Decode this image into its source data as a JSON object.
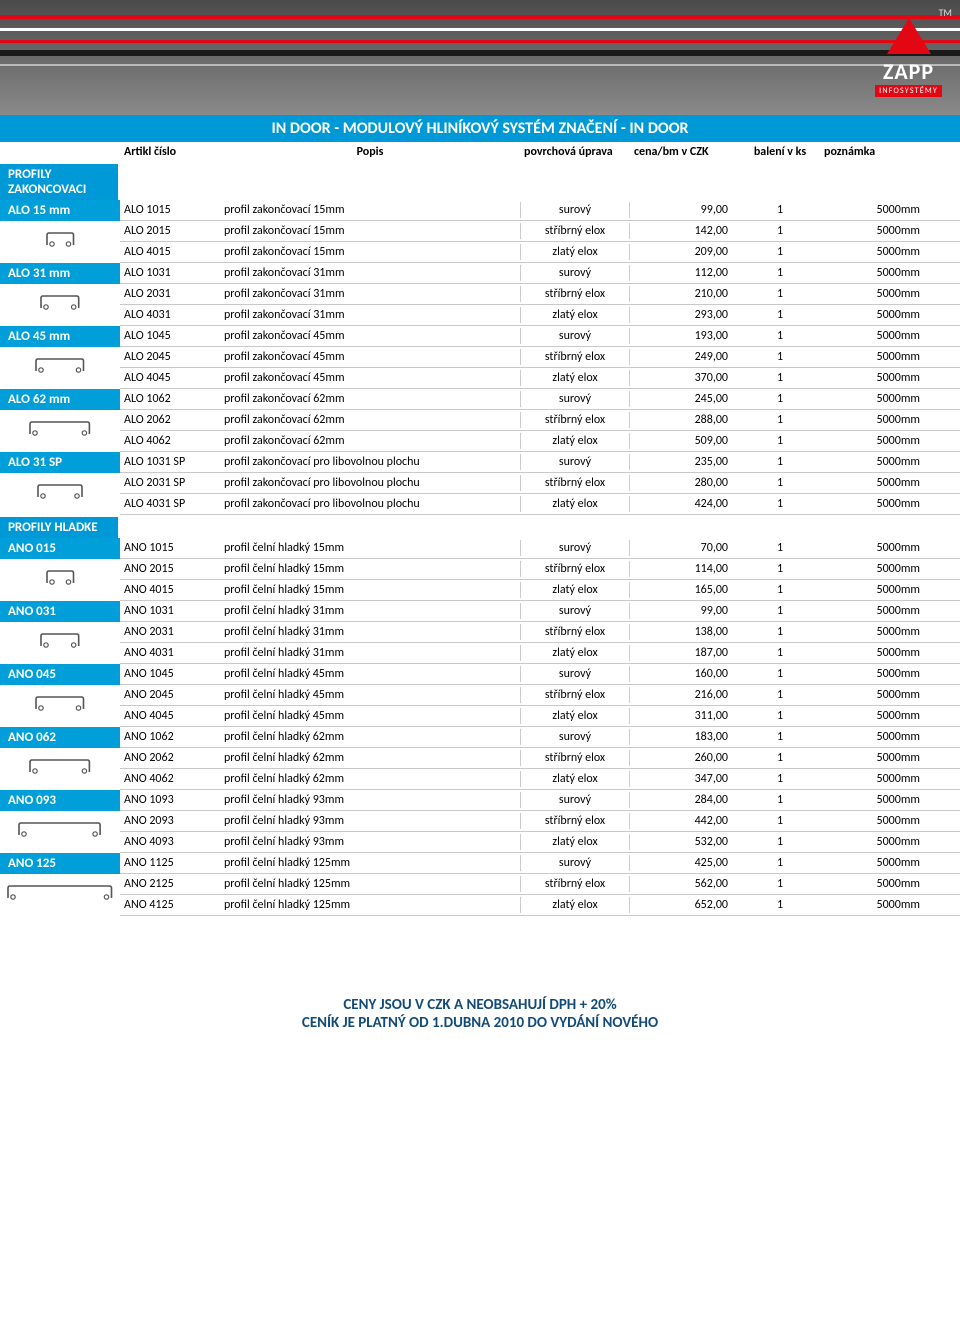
{
  "banner": {
    "brand": "ZAPP",
    "sub": "INFOSYSTÉMY",
    "tm": "TM"
  },
  "main_title": "IN DOOR - MODULOVÝ HLINÍKOVÝ SYSTÉM ZNAČENÍ - IN DOOR",
  "columns": {
    "article": "Artikl číslo",
    "popis": "Popis",
    "uprava": "povrchová úprava",
    "cena": "cena/bm v CZK",
    "baleni": "balení v ks",
    "pozn": "poznámka"
  },
  "sections": [
    {
      "title": "PROFILY ZAKONCOVACI"
    },
    {
      "title": "PROFILY HLADKE"
    }
  ],
  "groups": [
    {
      "section": 0,
      "badge": "ALO 15 mm",
      "icon": "p15",
      "rows": [
        {
          "article": "ALO 1015",
          "popis": "profil zakončovací 15mm",
          "uprava": "surový",
          "cena": "99,00",
          "baleni": "1",
          "pozn": "5000mm"
        },
        {
          "article": "ALO 2015",
          "popis": "profil zakončovací 15mm",
          "uprava": "stříbrný elox",
          "cena": "142,00",
          "baleni": "1",
          "pozn": "5000mm"
        },
        {
          "article": "ALO 4015",
          "popis": "profil zakončovací 15mm",
          "uprava": "zlatý elox",
          "cena": "209,00",
          "baleni": "1",
          "pozn": "5000mm"
        }
      ]
    },
    {
      "section": 0,
      "badge": "ALO 31 mm",
      "icon": "p31",
      "rows": [
        {
          "article": "ALO 1031",
          "popis": "profil zakončovací 31mm",
          "uprava": "surový",
          "cena": "112,00",
          "baleni": "1",
          "pozn": "5000mm"
        },
        {
          "article": "ALO 2031",
          "popis": "profil zakončovací 31mm",
          "uprava": "stříbrný elox",
          "cena": "210,00",
          "baleni": "1",
          "pozn": "5000mm"
        },
        {
          "article": "ALO 4031",
          "popis": "profil zakončovací 31mm",
          "uprava": "zlatý elox",
          "cena": "293,00",
          "baleni": "1",
          "pozn": "5000mm"
        }
      ]
    },
    {
      "section": 0,
      "badge": "ALO 45 mm",
      "icon": "p45",
      "rows": [
        {
          "article": "ALO 1045",
          "popis": "profil zakončovací 45mm",
          "uprava": "surový",
          "cena": "193,00",
          "baleni": "1",
          "pozn": "5000mm"
        },
        {
          "article": "ALO 2045",
          "popis": "profil zakončovací 45mm",
          "uprava": "stříbrný elox",
          "cena": "249,00",
          "baleni": "1",
          "pozn": "5000mm"
        },
        {
          "article": "ALO 4045",
          "popis": "profil zakončovací 45mm",
          "uprava": "zlatý elox",
          "cena": "370,00",
          "baleni": "1",
          "pozn": "5000mm"
        }
      ]
    },
    {
      "section": 0,
      "badge": "ALO 62 mm",
      "icon": "p62",
      "rows": [
        {
          "article": "ALO 1062",
          "popis": "profil zakončovací 62mm",
          "uprava": "surový",
          "cena": "245,00",
          "baleni": "1",
          "pozn": "5000mm"
        },
        {
          "article": "ALO 2062",
          "popis": "profil zakončovací 62mm",
          "uprava": "stříbrný elox",
          "cena": "288,00",
          "baleni": "1",
          "pozn": "5000mm"
        },
        {
          "article": "ALO 4062",
          "popis": "profil zakončovací 62mm",
          "uprava": "zlatý elox",
          "cena": "509,00",
          "baleni": "1",
          "pozn": "5000mm"
        }
      ]
    },
    {
      "section": 0,
      "badge": "ALO 31 SP",
      "icon": "psp",
      "rows": [
        {
          "article": "ALO 1031 SP",
          "popis": "profil zakončovací pro libovolnou plochu",
          "uprava": "surový",
          "cena": "235,00",
          "baleni": "1",
          "pozn": "5000mm"
        },
        {
          "article": "ALO 2031 SP",
          "popis": "profil zakončovací pro libovolnou plochu",
          "uprava": "stříbrný elox",
          "cena": "280,00",
          "baleni": "1",
          "pozn": "5000mm"
        },
        {
          "article": "ALO 4031 SP",
          "popis": "profil zakončovací pro libovolnou plochu",
          "uprava": "zlatý elox",
          "cena": "424,00",
          "baleni": "1",
          "pozn": "5000mm"
        }
      ]
    },
    {
      "section": 1,
      "badge": "ANO 015",
      "icon": "h15",
      "rows": [
        {
          "article": "ANO 1015",
          "popis": "profil čelní hladký 15mm",
          "uprava": "surový",
          "cena": "70,00",
          "baleni": "1",
          "pozn": "5000mm"
        },
        {
          "article": "ANO 2015",
          "popis": "profil čelní hladký 15mm",
          "uprava": "stříbrný elox",
          "cena": "114,00",
          "baleni": "1",
          "pozn": "5000mm"
        },
        {
          "article": "ANO 4015",
          "popis": "profil čelní hladký 15mm",
          "uprava": "zlatý elox",
          "cena": "165,00",
          "baleni": "1",
          "pozn": "5000mm"
        }
      ]
    },
    {
      "section": 1,
      "badge": "ANO 031",
      "icon": "h31",
      "rows": [
        {
          "article": "ANO 1031",
          "popis": "profil čelní hladký 31mm",
          "uprava": "surový",
          "cena": "99,00",
          "baleni": "1",
          "pozn": "5000mm"
        },
        {
          "article": "ANO 2031",
          "popis": "profil čelní hladký 31mm",
          "uprava": "stříbrný elox",
          "cena": "138,00",
          "baleni": "1",
          "pozn": "5000mm"
        },
        {
          "article": "ANO 4031",
          "popis": "profil čelní hladký 31mm",
          "uprava": "zlatý elox",
          "cena": "187,00",
          "baleni": "1",
          "pozn": "5000mm"
        }
      ]
    },
    {
      "section": 1,
      "badge": "ANO 045",
      "icon": "h45",
      "rows": [
        {
          "article": "ANO 1045",
          "popis": "profil čelní hladký 45mm",
          "uprava": "surový",
          "cena": "160,00",
          "baleni": "1",
          "pozn": "5000mm"
        },
        {
          "article": "ANO 2045",
          "popis": "profil čelní hladký 45mm",
          "uprava": "stříbrný elox",
          "cena": "216,00",
          "baleni": "1",
          "pozn": "5000mm"
        },
        {
          "article": "ANO 4045",
          "popis": "profil čelní hladký 45mm",
          "uprava": "zlatý elox",
          "cena": "311,00",
          "baleni": "1",
          "pozn": "5000mm"
        }
      ]
    },
    {
      "section": 1,
      "badge": "ANO 062",
      "icon": "h62",
      "rows": [
        {
          "article": "ANO 1062",
          "popis": "profil čelní hladký 62mm",
          "uprava": "surový",
          "cena": "183,00",
          "baleni": "1",
          "pozn": "5000mm"
        },
        {
          "article": "ANO 2062",
          "popis": "profil čelní hladký 62mm",
          "uprava": "stříbrný elox",
          "cena": "260,00",
          "baleni": "1",
          "pozn": "5000mm"
        },
        {
          "article": "ANO 4062",
          "popis": "profil čelní hladký 62mm",
          "uprava": "zlatý elox",
          "cena": "347,00",
          "baleni": "1",
          "pozn": "5000mm"
        }
      ]
    },
    {
      "section": 1,
      "badge": "ANO 093",
      "icon": "h93",
      "rows": [
        {
          "article": "ANO 1093",
          "popis": "profil čelní hladký 93mm",
          "uprava": "surový",
          "cena": "284,00",
          "baleni": "1",
          "pozn": "5000mm"
        },
        {
          "article": "ANO 2093",
          "popis": "profil čelní hladký 93mm",
          "uprava": "stříbrný elox",
          "cena": "442,00",
          "baleni": "1",
          "pozn": "5000mm"
        },
        {
          "article": "ANO 4093",
          "popis": "profil čelní hladký 93mm",
          "uprava": "zlatý elox",
          "cena": "532,00",
          "baleni": "1",
          "pozn": "5000mm"
        }
      ]
    },
    {
      "section": 1,
      "badge": "ANO 125",
      "icon": "h125",
      "rows": [
        {
          "article": "ANO 1125",
          "popis": "profil čelní hladký 125mm",
          "uprava": "surový",
          "cena": "425,00",
          "baleni": "1",
          "pozn": "5000mm"
        },
        {
          "article": "ANO 2125",
          "popis": "profil čelní hladký 125mm",
          "uprava": "stříbrný elox",
          "cena": "562,00",
          "baleni": "1",
          "pozn": "5000mm"
        },
        {
          "article": "ANO 4125",
          "popis": "profil čelní hladký 125mm",
          "uprava": "zlatý elox",
          "cena": "652,00",
          "baleni": "1",
          "pozn": "5000mm"
        }
      ]
    }
  ],
  "footer": {
    "line1": "CENY JSOU V CZK A NEOBSAHUJÍ DPH + 20%",
    "line2": "CENÍK JE PLATNÝ OD 1.DUBNA  2010 DO VYDÁNÍ NOVÉHO"
  },
  "colors": {
    "accent": "#0099d8",
    "banner_red": "#e30613",
    "grid": "#c9c9c9",
    "footer_text": "#124a7a"
  }
}
